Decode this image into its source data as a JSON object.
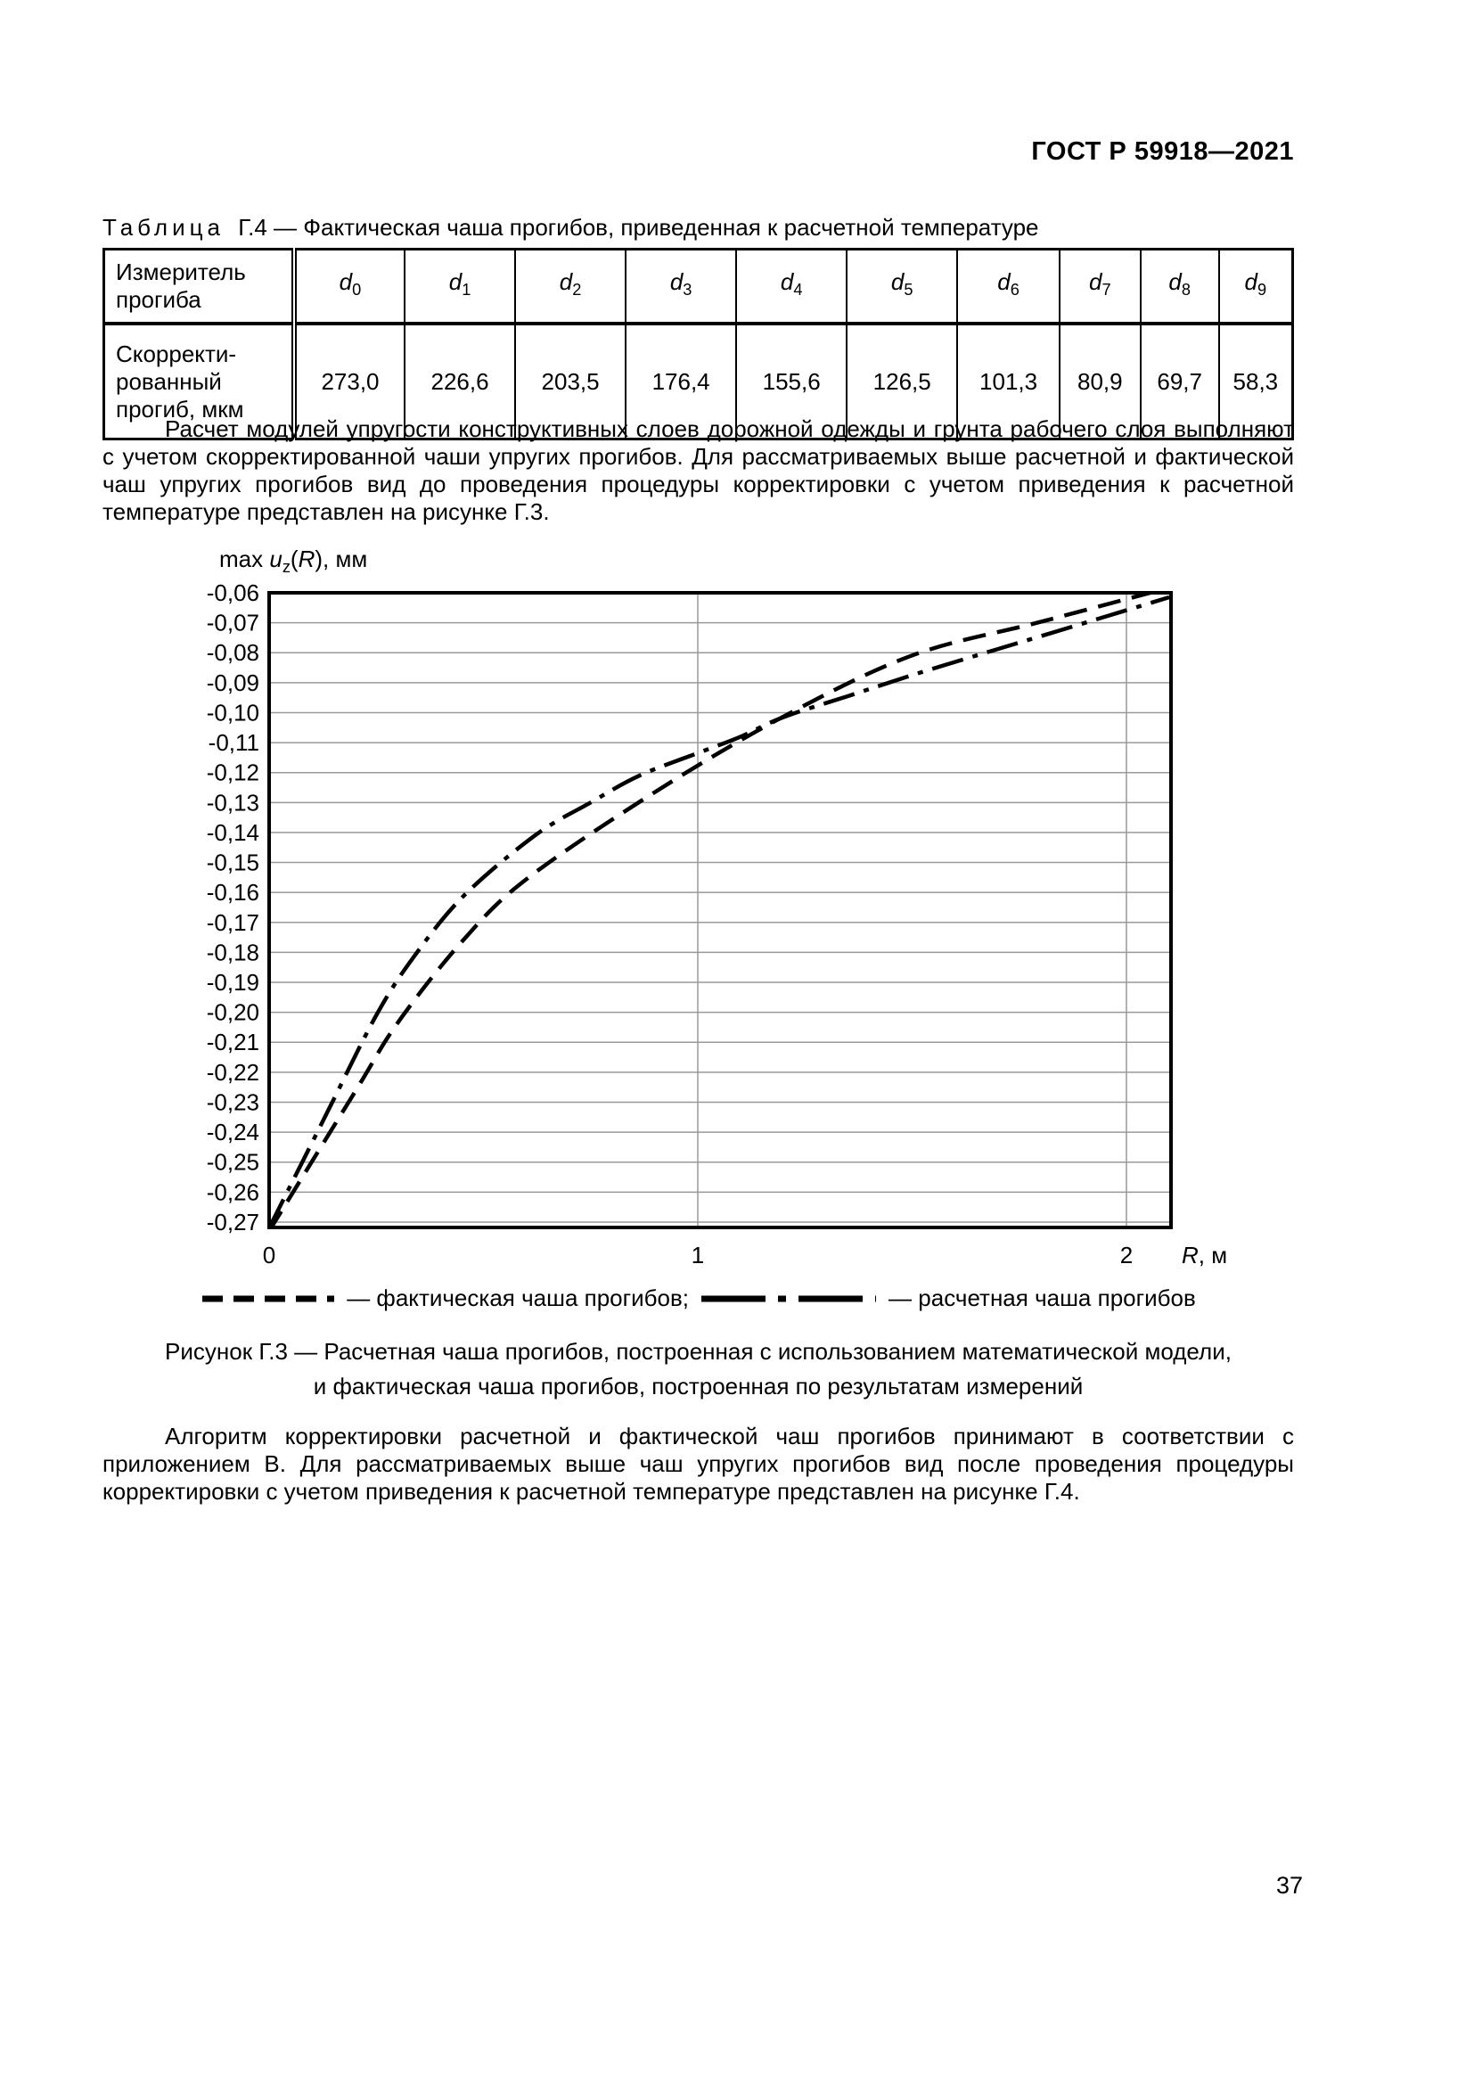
{
  "doc": {
    "number": "ГОСТ Р 59918—2021",
    "page_number": "37"
  },
  "table": {
    "caption_word": "Таблица",
    "caption_rest": "Г.4 — Фактическая чаша прогибов, приведенная к расчетной температуре",
    "row_header": "Измеритель\nпрогиба",
    "row_label": "Скорректи-\nрованный\nпрогиб, мкм",
    "headers": [
      {
        "base": "d",
        "sub": "0"
      },
      {
        "base": "d",
        "sub": "1"
      },
      {
        "base": "d",
        "sub": "2"
      },
      {
        "base": "d",
        "sub": "3"
      },
      {
        "base": "d",
        "sub": "4"
      },
      {
        "base": "d",
        "sub": "5"
      },
      {
        "base": "d",
        "sub": "6"
      },
      {
        "base": "d",
        "sub": "7"
      },
      {
        "base": "d",
        "sub": "8"
      },
      {
        "base": "d",
        "sub": "9"
      }
    ],
    "values": [
      "273,0",
      "226,6",
      "203,5",
      "176,4",
      "155,6",
      "126,5",
      "101,3",
      "80,9",
      "69,7",
      "58,3"
    ]
  },
  "paragraphs": {
    "p1": "Расчет модулей упругости конструктивных слоев дорожной одежды и грунта рабочего слоя выполняют с учетом скорректированной чаши упругих прогибов. Для рассматриваемых выше расчетной и фактической чаш упругих прогибов вид до проведения процедуры корректировки с учетом приведения к расчетной температуре представлен на рисунке Г.3.",
    "p2": "Алгоритм корректировки расчетной и фактической чаш прогибов принимают в соответствии с приложением В. Для рассматриваемых выше чаш упругих прогибов вид после проведения процедуры корректировки с учетом приведения к расчетной температуре представлен на рисунке Г.4."
  },
  "chart": {
    "title": {
      "max": "max ",
      "u": "u",
      "z": "z",
      "open": "(",
      "R": "R",
      "close": ")",
      "unit": ", мм"
    },
    "xlabel": {
      "R": "R",
      "unit": ", м"
    }
  },
  "chart_data": {
    "type": "line",
    "title": "max uz(R), мм",
    "xlabel": "R, м",
    "ylabel": "max uz(R), мм",
    "xlim": [
      0,
      2.104
    ],
    "ylim": [
      -0.2718,
      -0.06
    ],
    "grid": true,
    "legend_position": "bottom",
    "x_ticks": [
      {
        "v": 0,
        "label": "0"
      },
      {
        "v": 1,
        "label": "1"
      },
      {
        "v": 2,
        "label": "2"
      }
    ],
    "y_ticks": [
      {
        "v": -0.06,
        "label": "-0,06"
      },
      {
        "v": -0.07,
        "label": "-0,07"
      },
      {
        "v": -0.08,
        "label": "-0,08"
      },
      {
        "v": -0.09,
        "label": "-0,09"
      },
      {
        "v": -0.1,
        "label": "-0,10"
      },
      {
        "v": -0.11,
        "label": "-0,11"
      },
      {
        "v": -0.12,
        "label": "-0,12"
      },
      {
        "v": -0.13,
        "label": "-0,13"
      },
      {
        "v": -0.14,
        "label": "-0,14"
      },
      {
        "v": -0.15,
        "label": "-0,15"
      },
      {
        "v": -0.16,
        "label": "-0,16"
      },
      {
        "v": -0.17,
        "label": "-0,17"
      },
      {
        "v": -0.18,
        "label": "-0,18"
      },
      {
        "v": -0.19,
        "label": "-0,19"
      },
      {
        "v": -0.2,
        "label": "-0,20"
      },
      {
        "v": -0.21,
        "label": "-0,21"
      },
      {
        "v": -0.22,
        "label": "-0,22"
      },
      {
        "v": -0.23,
        "label": "-0,23"
      },
      {
        "v": -0.24,
        "label": "-0,24"
      },
      {
        "v": -0.25,
        "label": "-0,25"
      },
      {
        "v": -0.26,
        "label": "-0,26"
      },
      {
        "v": -0.27,
        "label": "-0,27"
      }
    ],
    "series": [
      {
        "name": "фактическая чаша прогибов",
        "style": "dashed",
        "points": [
          [
            0,
            -0.273
          ],
          [
            0.2,
            -0.2266
          ],
          [
            0.3,
            -0.2035
          ],
          [
            0.45,
            -0.1764
          ],
          [
            0.6,
            -0.1556
          ],
          [
            0.9,
            -0.1265
          ],
          [
            1.2,
            -0.1013
          ],
          [
            1.5,
            -0.0809
          ],
          [
            1.8,
            -0.0697
          ],
          [
            2.1,
            -0.0583
          ]
        ]
      },
      {
        "name": "расчетная чаша прогибов",
        "style": "dashdot",
        "points": [
          [
            0,
            -0.272
          ],
          [
            0.13,
            -0.235
          ],
          [
            0.25,
            -0.201
          ],
          [
            0.34,
            -0.181
          ],
          [
            0.455,
            -0.161
          ],
          [
            0.62,
            -0.141
          ],
          [
            0.75,
            -0.13
          ],
          [
            0.864,
            -0.121
          ],
          [
            1.0,
            -0.1135
          ],
          [
            1.1,
            -0.108
          ],
          [
            1.2,
            -0.1015
          ],
          [
            1.35,
            -0.0945
          ],
          [
            1.5,
            -0.0875
          ],
          [
            1.66,
            -0.0805
          ],
          [
            1.8,
            -0.0745
          ],
          [
            1.95,
            -0.068
          ],
          [
            2.1,
            -0.0615
          ]
        ]
      }
    ]
  },
  "legend": {
    "fact": "— фактическая чаша прогибов;",
    "calc": "— расчетная чаша прогибов"
  },
  "figure": {
    "caption": "Рисунок Г.3 — Расчетная чаша прогибов, построенная с использованием математической модели,\nи фактическая чаша прогибов, построенная по результатам измерений"
  },
  "colors": {
    "text": "#000000",
    "gridline": "#999999",
    "axis": "#000000",
    "background": "#ffffff"
  }
}
